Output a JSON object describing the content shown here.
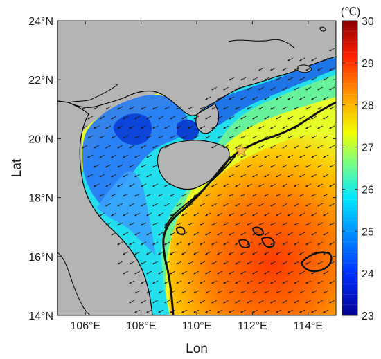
{
  "map": {
    "x_axis_title": "Lon",
    "y_axis_title": "Lat",
    "lon_range": [
      105,
      115
    ],
    "lat_range": [
      14,
      24
    ],
    "lon_ticks": [
      {
        "value": 106,
        "label": "106°E"
      },
      {
        "value": 108,
        "label": "108°E"
      },
      {
        "value": 110,
        "label": "110°E"
      },
      {
        "value": 112,
        "label": "112°E"
      },
      {
        "value": 114,
        "label": "114°E"
      }
    ],
    "lat_ticks": [
      {
        "value": 14,
        "label": "14°N"
      },
      {
        "value": 16,
        "label": "16°N"
      },
      {
        "value": 18,
        "label": "18°N"
      },
      {
        "value": 20,
        "label": "20°N"
      },
      {
        "value": 22,
        "label": "22°N"
      },
      {
        "value": 24,
        "label": "24°N"
      }
    ],
    "land_color": "#b4b4b4",
    "coastline_color": "#000000",
    "star_marker": {
      "lon": 111.6,
      "lat": 19.6,
      "color": "#f2c14e"
    }
  },
  "colorbar": {
    "unit_label": "(℃)",
    "min": 23,
    "max": 30,
    "ticks": [
      {
        "value": 30,
        "label": "30"
      },
      {
        "value": 29,
        "label": "29"
      },
      {
        "value": 28,
        "label": "28"
      },
      {
        "value": 27,
        "label": "27"
      },
      {
        "value": 26,
        "label": "26"
      },
      {
        "value": 25,
        "label": "25"
      },
      {
        "value": 24,
        "label": "24"
      },
      {
        "value": 23,
        "label": "23"
      }
    ],
    "colors": [
      "#00008f",
      "#0000ff",
      "#0080ff",
      "#00ffff",
      "#80ff80",
      "#ffff00",
      "#ff8000",
      "#ff0000",
      "#800000"
    ]
  }
}
